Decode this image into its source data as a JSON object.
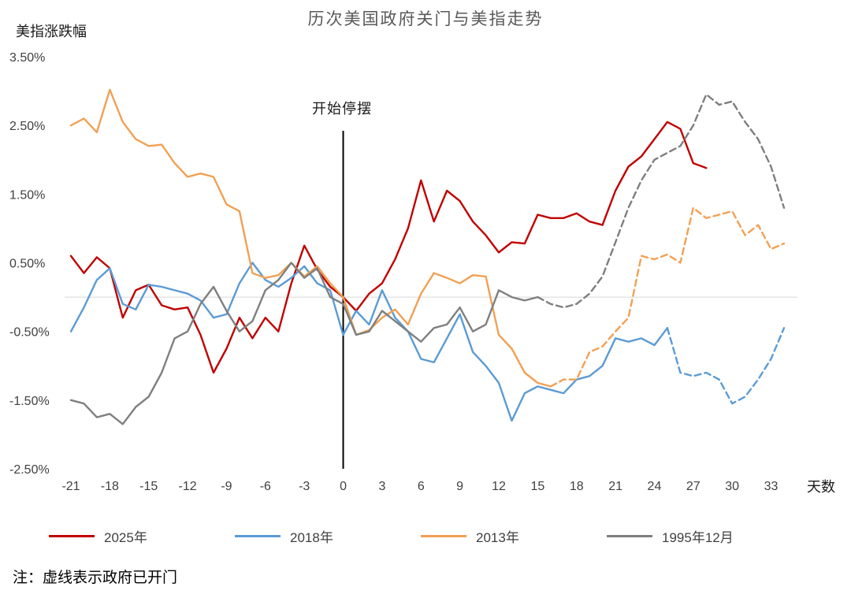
{
  "chart_data": {
    "type": "line",
    "title": "历次美国政府关门与美指走势",
    "ylabel": "美指涨跌幅",
    "xlabel": "天数",
    "annotation": "开始停摆",
    "note": "注：虚线表示政府已开门",
    "legend_position": "bottom",
    "grid": "zero-line-only",
    "xlim": [
      -21,
      34
    ],
    "ylim": [
      -2.5,
      3.5
    ],
    "x_ticks": [
      -21,
      -18,
      -15,
      -12,
      -9,
      -6,
      -3,
      0,
      3,
      6,
      9,
      12,
      15,
      18,
      21,
      24,
      27,
      30,
      33
    ],
    "y_ticks": [
      {
        "value": 3.5,
        "label": "3.50%"
      },
      {
        "value": 2.5,
        "label": "2.50%"
      },
      {
        "value": 1.5,
        "label": "1.50%"
      },
      {
        "value": 0.5,
        "label": "0.50%"
      },
      {
        "value": -0.5,
        "label": "-0.50%"
      },
      {
        "value": -1.5,
        "label": "-1.50%"
      },
      {
        "value": -2.5,
        "label": "-2.50%"
      }
    ],
    "series": [
      {
        "name": "2025年",
        "color": "#C00000",
        "x_start": -21,
        "dash_from": null,
        "values": [
          0.6,
          0.35,
          0.58,
          0.42,
          -0.3,
          0.1,
          0.18,
          -0.12,
          -0.18,
          -0.15,
          -0.55,
          -1.1,
          -0.75,
          -0.3,
          -0.6,
          -0.3,
          -0.5,
          0.2,
          0.75,
          0.4,
          0.15,
          0,
          -0.2,
          0.05,
          0.2,
          0.55,
          1.0,
          1.7,
          1.1,
          1.55,
          1.4,
          1.1,
          0.9,
          0.65,
          0.8,
          0.78,
          1.2,
          1.15,
          1.15,
          1.22,
          1.1,
          1.05,
          1.55,
          1.9,
          2.05,
          2.3,
          2.55,
          2.45,
          1.95,
          1.88
        ]
      },
      {
        "name": "2018年",
        "color": "#5B9BD5",
        "x_start": -21,
        "dash_from": 25,
        "values": [
          -0.5,
          -0.15,
          0.25,
          0.42,
          -0.1,
          -0.18,
          0.18,
          0.15,
          0.1,
          0.05,
          -0.05,
          -0.3,
          -0.25,
          0.2,
          0.5,
          0.25,
          0.15,
          0.28,
          0.45,
          0.2,
          0.1,
          -0.55,
          -0.2,
          -0.4,
          0.1,
          -0.3,
          -0.5,
          -0.9,
          -0.95,
          -0.6,
          -0.25,
          -0.8,
          -1.0,
          -1.25,
          -1.8,
          -1.4,
          -1.3,
          -1.35,
          -1.4,
          -1.2,
          -1.15,
          -1.0,
          -0.6,
          -0.65,
          -0.6,
          -0.7,
          -0.45,
          -1.1,
          -1.15,
          -1.1,
          -1.2,
          -1.55,
          -1.45,
          -1.2,
          -0.9,
          -0.45
        ]
      },
      {
        "name": "2013年",
        "color": "#F2A054",
        "x_start": -21,
        "dash_from": 16,
        "values": [
          2.5,
          2.6,
          2.4,
          3.02,
          2.55,
          2.3,
          2.2,
          2.22,
          1.95,
          1.75,
          1.8,
          1.75,
          1.35,
          1.25,
          0.35,
          0.28,
          0.32,
          0.5,
          0.3,
          0.45,
          0.2,
          0,
          -0.55,
          -0.48,
          -0.3,
          -0.18,
          -0.4,
          0.05,
          0.35,
          0.28,
          0.2,
          0.32,
          0.3,
          -0.55,
          -0.75,
          -1.1,
          -1.25,
          -1.3,
          -1.2,
          -1.2,
          -0.8,
          -0.72,
          -0.5,
          -0.3,
          0.6,
          0.55,
          0.62,
          0.5,
          1.3,
          1.15,
          1.2,
          1.25,
          0.9,
          1.05,
          0.7,
          0.78
        ]
      },
      {
        "name": "1995年12月",
        "color": "#7F7F7F",
        "x_start": -21,
        "dash_from": 15,
        "values": [
          -1.5,
          -1.55,
          -1.75,
          -1.7,
          -1.85,
          -1.6,
          -1.45,
          -1.1,
          -0.6,
          -0.5,
          -0.1,
          0.15,
          -0.2,
          -0.5,
          -0.35,
          0.1,
          0.25,
          0.5,
          0.28,
          0.42,
          0,
          -0.1,
          -0.55,
          -0.5,
          -0.2,
          -0.35,
          -0.5,
          -0.65,
          -0.45,
          -0.4,
          -0.15,
          -0.5,
          -0.4,
          0.1,
          0,
          -0.05,
          0,
          -0.1,
          -0.15,
          -0.1,
          0.05,
          0.3,
          0.8,
          1.3,
          1.7,
          2.0,
          2.1,
          2.2,
          2.5,
          2.95,
          2.8,
          2.85,
          2.55,
          2.3,
          1.9,
          1.3
        ]
      }
    ]
  }
}
